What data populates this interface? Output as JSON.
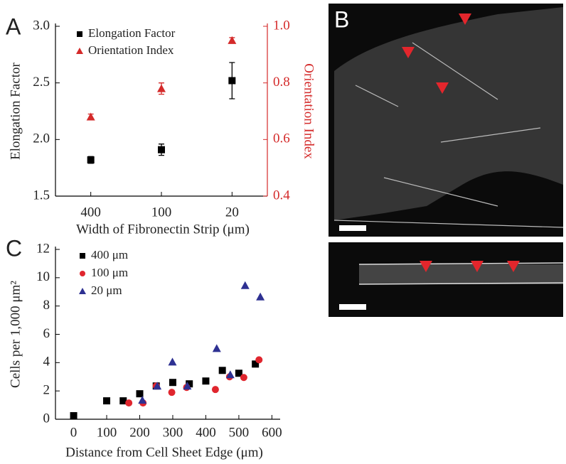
{
  "chart_data": [
    {
      "type": "errorbar",
      "panel": "A",
      "x_label": "Width of Fibronectin Strip (μm)",
      "y_label": "Elongation Factor",
      "y2_label": "Orientation Index",
      "categories": [
        "400",
        "100",
        "20"
      ],
      "ylim": [
        1.5,
        3.0
      ],
      "yticks": [
        1.5,
        {
          "value": 2,
          "label": "2.0"
        },
        2.5,
        {
          "value": 3,
          "label": "3.0"
        }
      ],
      "y2lim": [
        0.4,
        1.0
      ],
      "y2ticks": [
        0.4,
        0.6,
        0.8,
        {
          "value": 1,
          "label": "1.0"
        }
      ],
      "y2color": "#d42a2a",
      "series": [
        {
          "name": "Elongation Factor",
          "color": "#000000",
          "marker": "square",
          "values": [
            1.82,
            1.91,
            2.52
          ],
          "errors": [
            0.03,
            0.05,
            0.16
          ]
        },
        {
          "name": "Orientation Index",
          "color": "#d42a2a",
          "marker": "triangle",
          "axis": "y2",
          "values": [
            0.68,
            0.78,
            0.95
          ],
          "errors": [
            0.01,
            0.02,
            0.01
          ]
        }
      ]
    },
    {
      "type": "scatter",
      "panel": "C",
      "x_label": "Distance from Cell Sheet Edge (μm)",
      "y_label": "Cells per 1,000 μm²",
      "xlim": [
        -55,
        625
      ],
      "xticks": [
        0,
        100,
        200,
        300,
        400,
        500,
        600
      ],
      "ylim": [
        0,
        12
      ],
      "yticks": [
        0,
        2,
        4,
        6,
        8,
        10,
        12
      ],
      "series": [
        {
          "name": "400 μm",
          "color": "#000000",
          "marker": "square",
          "x": [
            0,
            100,
            150,
            200,
            250,
            300,
            350,
            400,
            450,
            500,
            550
          ],
          "values": [
            0.25,
            1.3,
            1.3,
            1.8,
            2.35,
            2.6,
            2.5,
            2.7,
            3.45,
            3.25,
            3.9
          ]
        },
        {
          "name": "100 μm",
          "color": "#e0262e",
          "marker": "circle",
          "x": [
            167,
            210,
            250,
            297,
            342,
            429,
            472,
            515,
            561
          ],
          "values": [
            1.15,
            1.15,
            2.35,
            1.9,
            2.25,
            2.1,
            3.0,
            2.95,
            4.2
          ]
        },
        {
          "name": "20  μm",
          "color": "#2e3192",
          "marker": "triangle",
          "x": [
            208,
            253,
            299,
            344,
            433,
            474,
            519,
            565
          ],
          "values": [
            1.35,
            2.35,
            4.05,
            2.35,
            5.0,
            3.15,
            9.45,
            8.65
          ]
        }
      ]
    }
  ],
  "image_panel": {
    "label": "B"
  }
}
